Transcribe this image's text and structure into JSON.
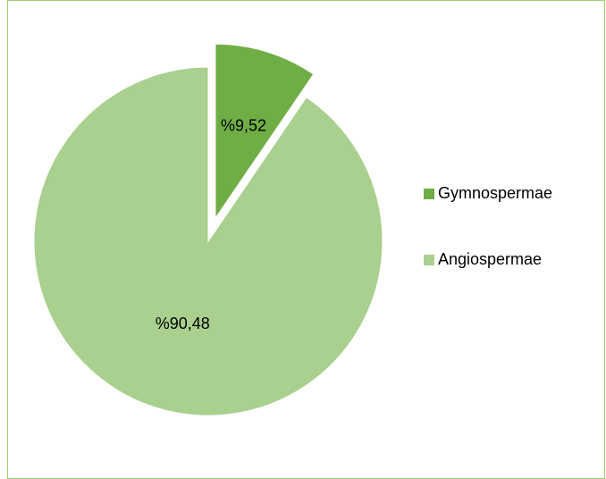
{
  "chart_data": {
    "type": "pie",
    "categories": [
      "Gymnospermae",
      "Angiospermae"
    ],
    "values": [
      9.52,
      90.48
    ],
    "value_labels": [
      "%9,52",
      "%90,48"
    ],
    "colors": [
      "#6fae45",
      "#a9d08e"
    ],
    "exploded": [
      true,
      false
    ],
    "legend": "right"
  }
}
